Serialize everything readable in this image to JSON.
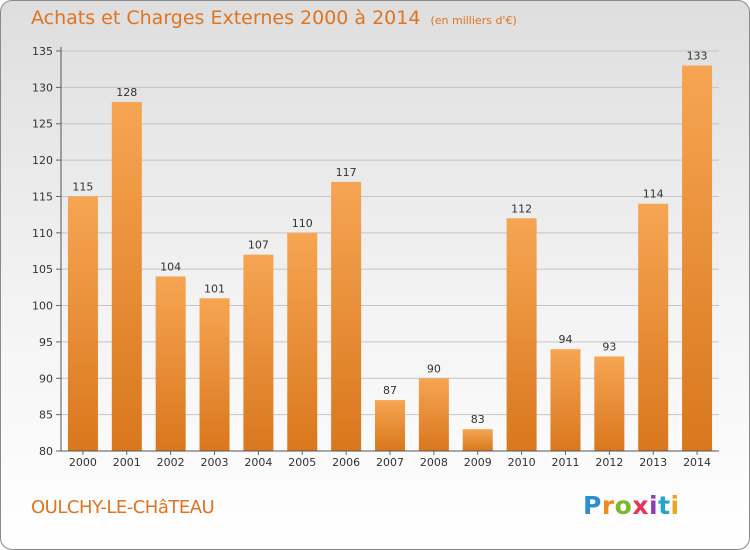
{
  "header": {
    "title": "Achats et Charges Externes 2000 à 2014",
    "subtitle": "(en milliers d'€)"
  },
  "footer": {
    "location": "OULCHY-LE-CHâTEAU",
    "brand": "Proxiti"
  },
  "colors": {
    "bar_light": "#f6a552",
    "bar_dark": "#d9771d",
    "accent": "#e07420"
  },
  "chart_data": {
    "type": "bar",
    "categories": [
      "2000",
      "2001",
      "2002",
      "2003",
      "2004",
      "2005",
      "2006",
      "2007",
      "2008",
      "2009",
      "2010",
      "2011",
      "2012",
      "2013",
      "2014"
    ],
    "values": [
      115,
      128,
      104,
      101,
      107,
      110,
      117,
      87,
      90,
      83,
      112,
      94,
      93,
      114,
      133
    ],
    "ylim": [
      80,
      135
    ],
    "yticks": [
      80,
      85,
      90,
      95,
      100,
      105,
      110,
      115,
      120,
      125,
      130,
      135
    ],
    "grid": "horizontal",
    "title": "Achats et Charges Externes 2000 à 2014",
    "xlabel": "",
    "ylabel": ""
  }
}
